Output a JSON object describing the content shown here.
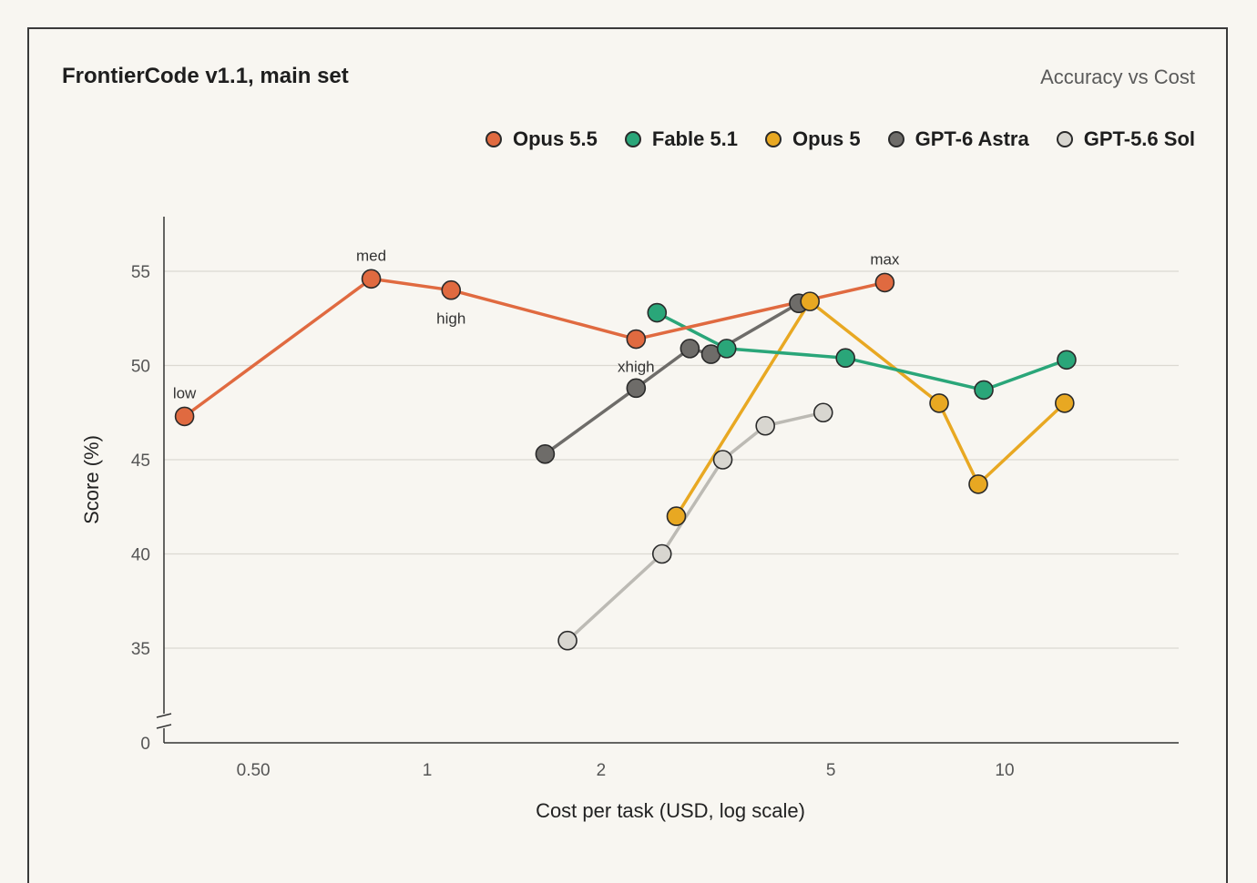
{
  "card": {
    "title": "FrontierCode v1.1, main set",
    "subtitle": "Accuracy vs Cost"
  },
  "chart_data": {
    "type": "line",
    "title": "FrontierCode v1.1, main set",
    "subtitle": "Accuracy vs Cost",
    "xlabel": "Cost per task (USD, log scale)",
    "ylabel": "Score (%)",
    "x_scale": "log",
    "xlim": [
      0.35,
      16
    ],
    "x_ticks": [
      0.5,
      1,
      2,
      5,
      10
    ],
    "x_tick_labels": [
      "0.50",
      "1",
      "2",
      "5",
      "10"
    ],
    "y_ticks": [
      0,
      35,
      40,
      45,
      50,
      55
    ],
    "y_axis_break": "between 0 and 35",
    "ylim_visible": [
      32.5,
      57
    ],
    "grid": "horizontal",
    "legend_position": "top-right",
    "series": [
      {
        "name": "Opus 5.5",
        "color": "#e06a40",
        "points": [
          {
            "x": 0.38,
            "y": 47.3,
            "label": "low"
          },
          {
            "x": 0.8,
            "y": 54.6,
            "label": "med"
          },
          {
            "x": 1.1,
            "y": 54.0,
            "label": "high"
          },
          {
            "x": 2.3,
            "y": 51.4,
            "label": "xhigh"
          },
          {
            "x": 6.2,
            "y": 54.4,
            "label": "max"
          }
        ]
      },
      {
        "name": "Fable 5.1",
        "color": "#2aa679",
        "points": [
          {
            "x": 2.5,
            "y": 52.8
          },
          {
            "x": 3.3,
            "y": 50.9
          },
          {
            "x": 5.3,
            "y": 50.4
          },
          {
            "x": 9.2,
            "y": 48.7
          },
          {
            "x": 12.8,
            "y": 50.3
          }
        ]
      },
      {
        "name": "Opus 5",
        "color": "#e8a822",
        "points": [
          {
            "x": 2.7,
            "y": 42.0
          },
          {
            "x": 4.6,
            "y": 53.4
          },
          {
            "x": 7.7,
            "y": 48.0
          },
          {
            "x": 9.0,
            "y": 43.7
          },
          {
            "x": 12.7,
            "y": 48.0
          }
        ]
      },
      {
        "name": "GPT-6 Astra",
        "color": "#6e6c69",
        "points": [
          {
            "x": 1.6,
            "y": 45.3
          },
          {
            "x": 2.3,
            "y": 48.8
          },
          {
            "x": 2.85,
            "y": 50.9
          },
          {
            "x": 3.1,
            "y": 50.6
          },
          {
            "x": 4.4,
            "y": 53.3
          }
        ]
      },
      {
        "name": "GPT-5.6 Sol",
        "color": "#d8d6d0",
        "points": [
          {
            "x": 1.75,
            "y": 35.4
          },
          {
            "x": 2.55,
            "y": 40.0
          },
          {
            "x": 3.25,
            "y": 45.0
          },
          {
            "x": 3.85,
            "y": 46.8
          },
          {
            "x": 4.85,
            "y": 47.5
          }
        ]
      }
    ]
  }
}
